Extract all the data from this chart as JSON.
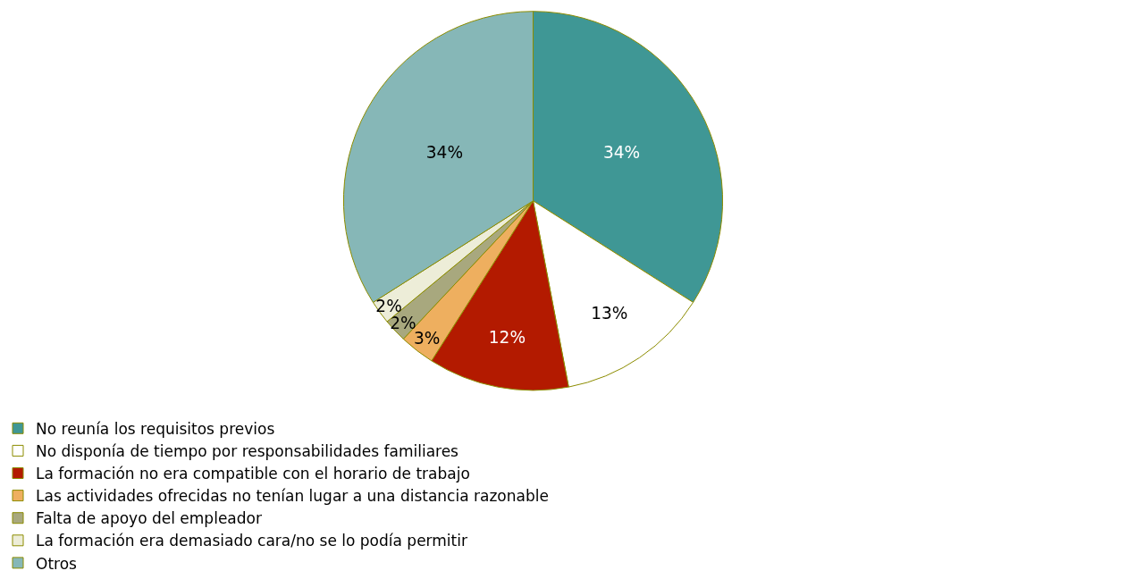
{
  "chart_data": {
    "type": "pie",
    "categories": [
      "No reunía los requisitos previos",
      "No disponía de tiempo por responsabilidades familiares",
      "La formación no era compatible con el horario de trabajo",
      "Las actividades ofrecidas no tenían lugar a una distancia razonable",
      "Falta de apoyo del empleador",
      "La formación era demasiado cara/no se lo podía permitir",
      "Otros"
    ],
    "values": [
      34,
      13,
      12,
      3,
      2,
      2,
      34
    ],
    "value_labels": [
      "34%",
      "13%",
      "12%",
      "3%",
      "2%",
      "2%",
      "34%"
    ],
    "colors": [
      "#3f9795",
      "#ffffff",
      "#b31a00",
      "#eeaf5f",
      "#a8a87e",
      "#ededd8",
      "#86b7b7"
    ],
    "legend": "bottom"
  }
}
